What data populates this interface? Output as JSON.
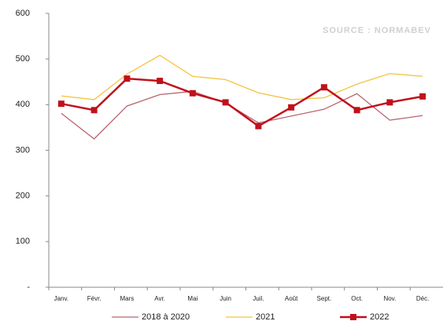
{
  "chart_data": {
    "type": "line",
    "annotation": "SOURCE : NORMABEV",
    "categories": [
      "Janv.",
      "Févr.",
      "Mars",
      "Avr.",
      "Mai",
      "Juin",
      "Juil.",
      "Août",
      "Sept.",
      "Oct.",
      "Nov.",
      "Déc."
    ],
    "series": [
      {
        "name": "2018 à 2020",
        "color": "#b8636f",
        "marker": false,
        "values": [
          381,
          325,
          397,
          422,
          429,
          404,
          360,
          375,
          390,
          424,
          366,
          376
        ]
      },
      {
        "name": "2021",
        "color": "#f4c33e",
        "marker": false,
        "values": [
          419,
          411,
          467,
          508,
          462,
          455,
          426,
          411,
          415,
          445,
          468,
          462
        ]
      },
      {
        "name": "2022",
        "color": "#c0111b",
        "marker": true,
        "values": [
          402,
          388,
          457,
          452,
          425,
          405,
          353,
          394,
          438,
          388,
          405,
          418
        ]
      }
    ],
    "ylim": [
      0,
      600
    ],
    "yticks": [
      {
        "value": 0,
        "label": "-"
      },
      100,
      200,
      300,
      400,
      500,
      600
    ],
    "grid": false
  }
}
